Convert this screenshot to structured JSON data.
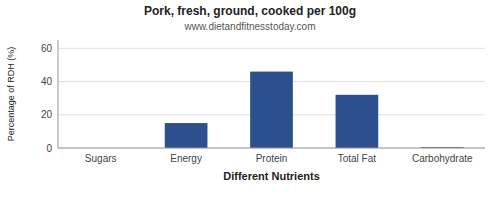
{
  "chart_data": {
    "type": "bar",
    "title": "Pork, fresh, ground, cooked per 100g",
    "subtitle": "www.dietandfitnesstoday.com",
    "xlabel": "Different Nutrients",
    "ylabel": "Percentage of RDH (%)",
    "categories": [
      "Sugars",
      "Energy",
      "Protein",
      "Total Fat",
      "Carbohydrate"
    ],
    "values": [
      0,
      15,
      46,
      32,
      0.5
    ],
    "color": "#2d4f8e",
    "ylim": [
      0,
      65
    ],
    "yticks": [
      0,
      20,
      40,
      60
    ],
    "grid": true
  }
}
